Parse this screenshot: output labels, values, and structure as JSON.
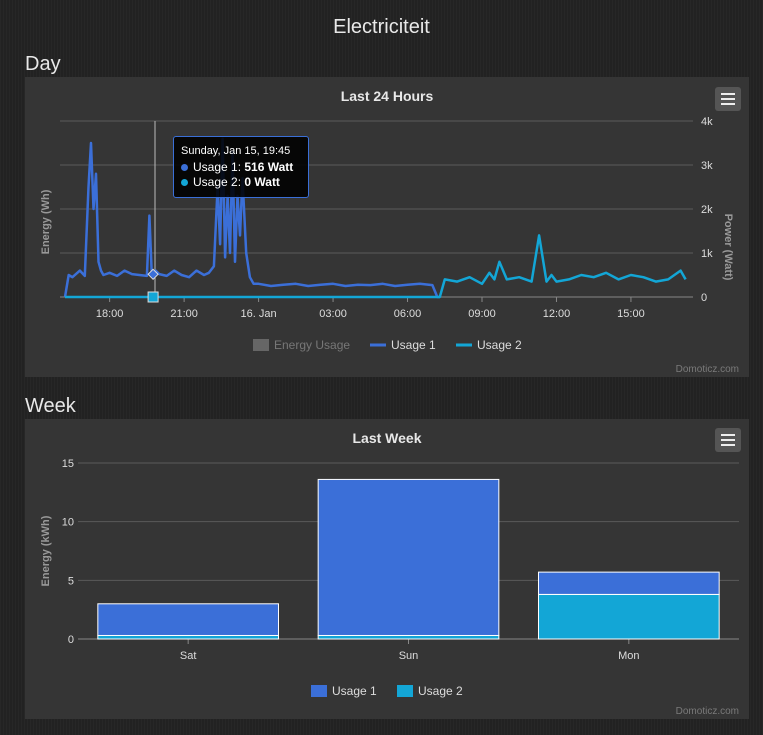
{
  "page_title": "Electriciteit",
  "sections": {
    "day": "Day",
    "week": "Week"
  },
  "credit": "Domoticz.com",
  "colors": {
    "usage1": "#3b6fd8",
    "usage2": "#13a6d6",
    "energy": "#666666"
  },
  "tooltip": {
    "date": "Sunday, Jan 15, 19:45",
    "usage1_label": "Usage 1:",
    "usage1_value": "516 Watt",
    "usage2_label": "Usage 2:",
    "usage2_value": "0 Watt"
  },
  "chart_data": [
    {
      "type": "line",
      "title": "Last 24 Hours",
      "ylabel_left": "Energy (Wh)",
      "ylabel_right": "Power (Watt)",
      "x_tick_labels": [
        "18:00",
        "21:00",
        "16. Jan",
        "03:00",
        "06:00",
        "09:00",
        "12:00",
        "15:00"
      ],
      "y_right_ticks": [
        "4k",
        "3k",
        "2k",
        "1k",
        "0"
      ],
      "ylim_right": [
        0,
        4000
      ],
      "legend": [
        "Energy Usage",
        "Usage 1",
        "Usage 2"
      ],
      "legend_placement": "bottom-center",
      "series": [
        {
          "name": "Usage 1",
          "x_hours": [
            16.2,
            16.35,
            16.5,
            16.8,
            17.0,
            17.15,
            17.25,
            17.35,
            17.45,
            17.55,
            17.65,
            17.75,
            18.0,
            18.3,
            18.6,
            18.9,
            19.2,
            19.5,
            19.6,
            19.7,
            19.75,
            19.85,
            20.0,
            20.3,
            20.6,
            20.9,
            21.2,
            21.5,
            21.8,
            22.0,
            22.2,
            22.35,
            22.45,
            22.55,
            22.65,
            22.75,
            22.85,
            22.95,
            23.05,
            23.15,
            23.25,
            23.35,
            23.5,
            23.65,
            23.8,
            24.0,
            24.5,
            25.0,
            25.5,
            26.0,
            26.5,
            27.0,
            27.5,
            28.0,
            28.5,
            29.0,
            29.5,
            30.0,
            30.5,
            31.0,
            31.2,
            31.3
          ],
          "values": [
            0,
            500,
            450,
            600,
            480,
            2500,
            3500,
            2000,
            2800,
            800,
            600,
            500,
            550,
            480,
            600,
            520,
            500,
            480,
            1850,
            500,
            516,
            600,
            520,
            480,
            600,
            500,
            450,
            600,
            500,
            550,
            700,
            2500,
            1200,
            3600,
            900,
            2300,
            1000,
            3300,
            800,
            2300,
            1400,
            2700,
            1000,
            450,
            300,
            300,
            250,
            280,
            300,
            250,
            280,
            300,
            250,
            280,
            270,
            300,
            250,
            280,
            300,
            270,
            0,
            0
          ]
        },
        {
          "name": "Usage 2",
          "x_hours": [
            16.2,
            31.3,
            31.5,
            32.0,
            32.5,
            33.0,
            33.3,
            33.5,
            33.7,
            34.0,
            34.5,
            35.0,
            35.3,
            35.6,
            35.8,
            36.0,
            36.5,
            37.0,
            37.5,
            38.0,
            38.5,
            39.0,
            39.5,
            40.0,
            40.5,
            41.0,
            41.2
          ],
          "values": [
            0,
            0,
            400,
            350,
            450,
            300,
            550,
            400,
            800,
            400,
            450,
            350,
            1400,
            350,
            500,
            350,
            400,
            500,
            450,
            550,
            400,
            500,
            450,
            350,
            400,
            600,
            400
          ]
        }
      ]
    },
    {
      "type": "bar",
      "title": "Last Week",
      "ylabel": "Energy (kWh)",
      "categories": [
        "Sat",
        "Sun",
        "Mon"
      ],
      "y_ticks": [
        0,
        5,
        10,
        15
      ],
      "ylim": [
        0,
        15
      ],
      "stacked": true,
      "series": [
        {
          "name": "Usage 1",
          "values": [
            2.7,
            13.3,
            1.9
          ]
        },
        {
          "name": "Usage 2",
          "values": [
            0.3,
            0.3,
            3.8
          ]
        }
      ],
      "legend_placement": "bottom-center"
    }
  ]
}
